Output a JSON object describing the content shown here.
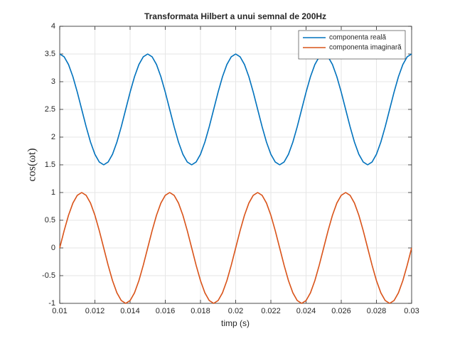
{
  "chart_data": {
    "type": "line",
    "title": "Transformata Hilbert a unui semnal de 200Hz",
    "x_label": "timp (s)",
    "y_label": "cos(ωt)",
    "x": [
      0.01,
      0.01025,
      0.0105,
      0.01075,
      0.011,
      0.01125,
      0.0115,
      0.01175,
      0.012,
      0.01225,
      0.0125,
      0.01275,
      0.013,
      0.01325,
      0.0135,
      0.01375,
      0.014,
      0.01425,
      0.0145,
      0.01475,
      0.015,
      0.01525,
      0.0155,
      0.01575,
      0.016,
      0.01625,
      0.0165,
      0.01675,
      0.017,
      0.01725,
      0.0175,
      0.01775,
      0.018,
      0.01825,
      0.0185,
      0.01875,
      0.019,
      0.01925,
      0.0195,
      0.01975,
      0.02,
      0.02025,
      0.0205,
      0.02075,
      0.021,
      0.02125,
      0.0215,
      0.02175,
      0.022,
      0.02225,
      0.0225,
      0.02275,
      0.023,
      0.02325,
      0.0235,
      0.02375,
      0.024,
      0.02425,
      0.0245,
      0.02475,
      0.025,
      0.02525,
      0.0255,
      0.02575,
      0.026,
      0.02625,
      0.0265,
      0.02675,
      0.027,
      0.02725,
      0.0275,
      0.02775,
      0.028,
      0.02825,
      0.0285,
      0.02875,
      0.029,
      0.02925,
      0.0295,
      0.02975,
      0.03
    ],
    "series": [
      {
        "name": "componenta reală",
        "color": "#0072BD",
        "values": [
          3.5,
          3.45,
          3.31,
          3.09,
          2.81,
          2.5,
          2.19,
          1.91,
          1.69,
          1.55,
          1.5,
          1.55,
          1.69,
          1.91,
          2.19,
          2.5,
          2.81,
          3.09,
          3.31,
          3.45,
          3.5,
          3.45,
          3.31,
          3.09,
          2.81,
          2.5,
          2.19,
          1.91,
          1.69,
          1.55,
          1.5,
          1.55,
          1.69,
          1.91,
          2.19,
          2.5,
          2.81,
          3.09,
          3.31,
          3.45,
          3.5,
          3.45,
          3.31,
          3.09,
          2.81,
          2.5,
          2.19,
          1.91,
          1.69,
          1.55,
          1.5,
          1.55,
          1.69,
          1.91,
          2.19,
          2.5,
          2.81,
          3.09,
          3.31,
          3.45,
          3.5,
          3.45,
          3.31,
          3.09,
          2.81,
          2.5,
          2.19,
          1.91,
          1.69,
          1.55,
          1.5,
          1.55,
          1.69,
          1.91,
          2.19,
          2.5,
          2.81,
          3.09,
          3.31,
          3.45,
          3.5
        ]
      },
      {
        "name": "componenta imaginară",
        "color": "#D95319",
        "values": [
          0,
          0.31,
          0.59,
          0.81,
          0.95,
          1,
          0.95,
          0.81,
          0.59,
          0.31,
          0,
          -0.31,
          -0.59,
          -0.81,
          -0.95,
          -1,
          -0.95,
          -0.81,
          -0.59,
          -0.31,
          0,
          0.31,
          0.59,
          0.81,
          0.95,
          1,
          0.95,
          0.81,
          0.59,
          0.31,
          0,
          -0.31,
          -0.59,
          -0.81,
          -0.95,
          -1,
          -0.95,
          -0.81,
          -0.59,
          -0.31,
          0,
          0.31,
          0.59,
          0.81,
          0.95,
          1,
          0.95,
          0.81,
          0.59,
          0.31,
          0,
          -0.31,
          -0.59,
          -0.81,
          -0.95,
          -1,
          -0.95,
          -0.81,
          -0.59,
          -0.31,
          0,
          0.31,
          0.59,
          0.81,
          0.95,
          1,
          0.95,
          0.81,
          0.59,
          0.31,
          0,
          -0.31,
          -0.59,
          -0.81,
          -0.95,
          -1,
          -0.95,
          -0.81,
          -0.59,
          -0.31,
          0
        ]
      }
    ],
    "xlim": [
      0.01,
      0.03
    ],
    "xticks": [
      0.01,
      0.012,
      0.014,
      0.016,
      0.018,
      0.02,
      0.022,
      0.024,
      0.026,
      0.028,
      0.03
    ],
    "ylim": [
      -1,
      4
    ],
    "yticks": [
      -1,
      -0.5,
      0,
      0.5,
      1,
      1.5,
      2,
      2.5,
      3,
      3.5,
      4
    ],
    "grid": true,
    "legend": "top-right"
  }
}
